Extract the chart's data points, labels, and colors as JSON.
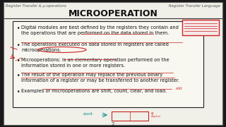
{
  "bg_color": "#1a1a1a",
  "slide_bg": "#f0efe8",
  "title": "MICROOPERATION",
  "header_left": "Register Transfer & µ-operations",
  "header_right": "Register Transfer Language",
  "footer_number": "2",
  "title_color": "#111111",
  "bullet_color": "#111111",
  "bullets": [
    "Digital modules are best defined by the registers they contain and\nthe operations that are performed on the data stored in them.",
    "The operations executed on data stored in registers are called\nmicrooperations.",
    "Microoperations: is an elementary operation performed on the\ninformation stored in one or more registers.",
    "The result of the operation may replace the previous binary\ninformation of a register or may be transferred to another register.",
    "Examples of microoperations are shift, count, clear, and load."
  ],
  "box_edge_color": "#222222",
  "red": "#cc2222",
  "teal": "#008888",
  "header_color": "#555555",
  "stamp_lines_color": "#cc2222"
}
